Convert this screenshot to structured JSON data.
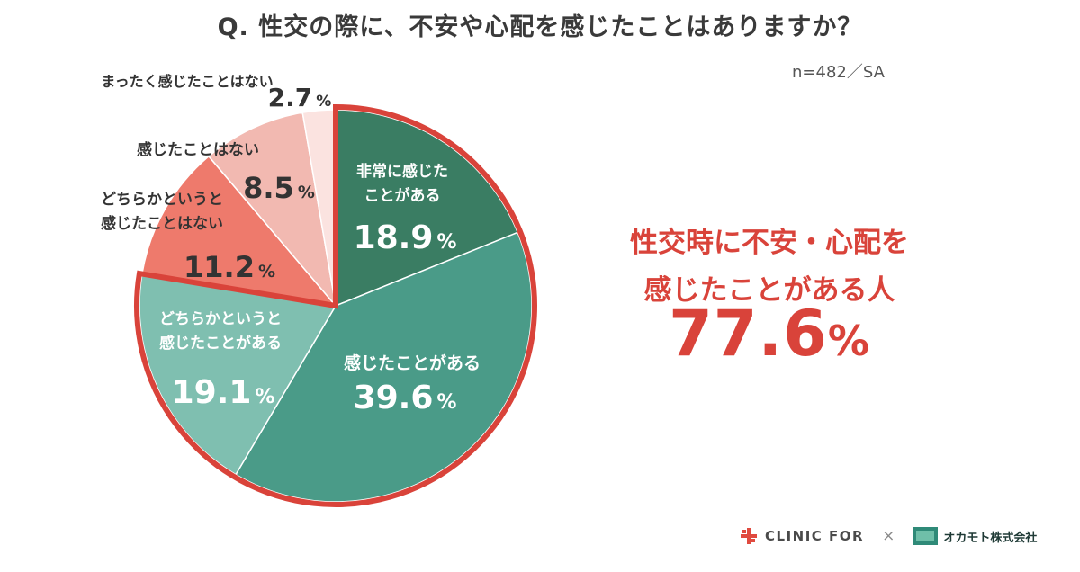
{
  "title": "Q.  性交の際に、不安や心配を感じたことはありますか？",
  "sample_note": "n=482／SA",
  "chart_data": {
    "type": "pie",
    "start_angle_deg": 0,
    "direction": "clockwise",
    "slices": [
      {
        "label_lines": [
          "非常に感じた",
          "ことがある"
        ],
        "value": 18.9,
        "value_text": "18.9",
        "color": "#3a7d63",
        "label_color": "#ffffff",
        "highlighted": true
      },
      {
        "label_lines": [
          "感じたことがある"
        ],
        "value": 39.6,
        "value_text": "39.6",
        "color": "#4a9b88",
        "label_color": "#ffffff",
        "highlighted": true
      },
      {
        "label_lines": [
          "どちらかというと",
          "感じたことがある"
        ],
        "value": 19.1,
        "value_text": "19.1",
        "color": "#7fbfb0",
        "label_color": "#ffffff",
        "highlighted": true
      },
      {
        "label_lines": [
          "どちらかというと",
          "感じたことはない"
        ],
        "value": 11.2,
        "value_text": "11.2",
        "color": "#ee7a6c",
        "label_color": "#333333",
        "highlighted": false
      },
      {
        "label_lines": [
          "感じたことはない"
        ],
        "value": 8.5,
        "value_text": "8.5",
        "color": "#f2b9b1",
        "label_color": "#333333",
        "highlighted": false
      },
      {
        "label_lines": [
          "まったく感じたことはない"
        ],
        "value": 2.7,
        "value_text": "2.7",
        "color": "#fbe3e0",
        "label_color": "#333333",
        "highlighted": false
      }
    ],
    "percent_sign": "%",
    "highlight_color": "#d9433a"
  },
  "callout": {
    "line1": "性交時に不安・心配を",
    "line2": "感じたことがある人",
    "total_value": "77.6",
    "total_unit": "%"
  },
  "footer": {
    "brand1": "CLINIC FOR",
    "separator": "×",
    "brand2": "オカモト株式会社"
  }
}
